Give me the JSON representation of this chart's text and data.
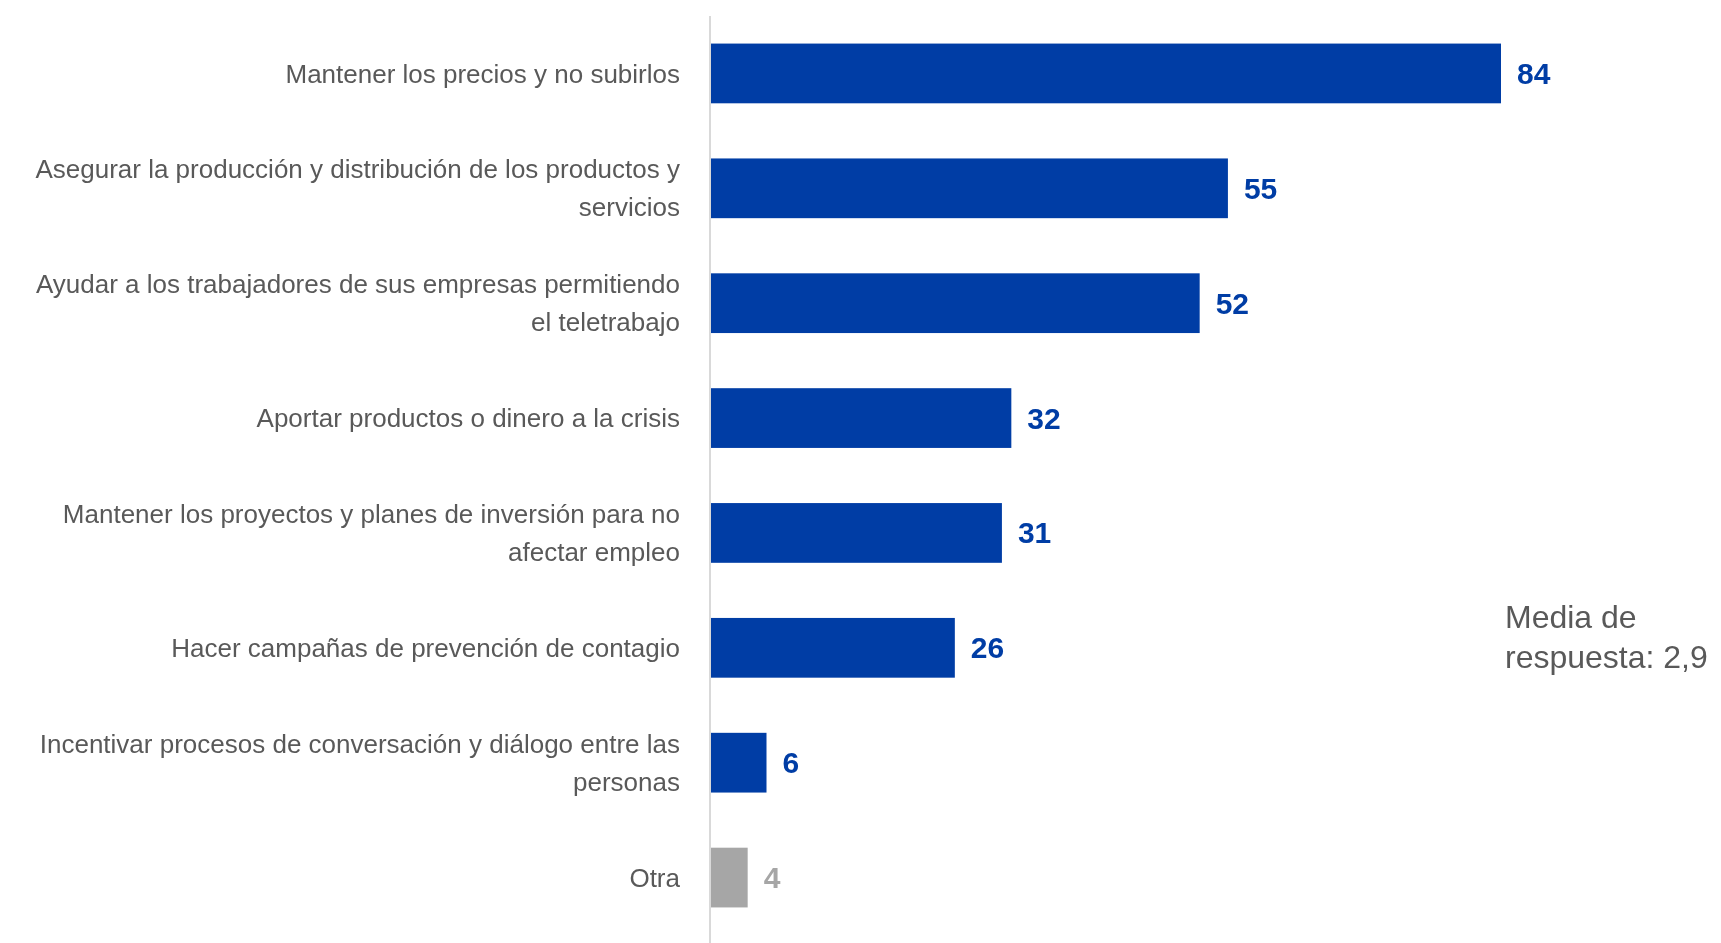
{
  "chart_data": {
    "type": "bar",
    "orientation": "horizontal",
    "categories": [
      "Mantener los precios y no subirlos",
      "Asegurar la producción y distribución de los productos y servicios",
      "Ayudar a los trabajadores de sus empresas permitiendo el teletrabajo",
      "Aportar productos o dinero a la crisis",
      "Mantener los proyectos y planes de inversión para no afectar empleo",
      "Hacer campañas de prevención de contagio",
      "Incentivar procesos de conversación y diálogo entre las personas",
      "Otra"
    ],
    "values": [
      84,
      55,
      52,
      32,
      31,
      26,
      6,
      4
    ],
    "colors": [
      "#003da5",
      "#003da5",
      "#003da5",
      "#003da5",
      "#003da5",
      "#003da5",
      "#003da5",
      "#a6a6a6"
    ],
    "data_labels": true,
    "annotations": [
      "Media de respuesta: 2,9"
    ]
  }
}
